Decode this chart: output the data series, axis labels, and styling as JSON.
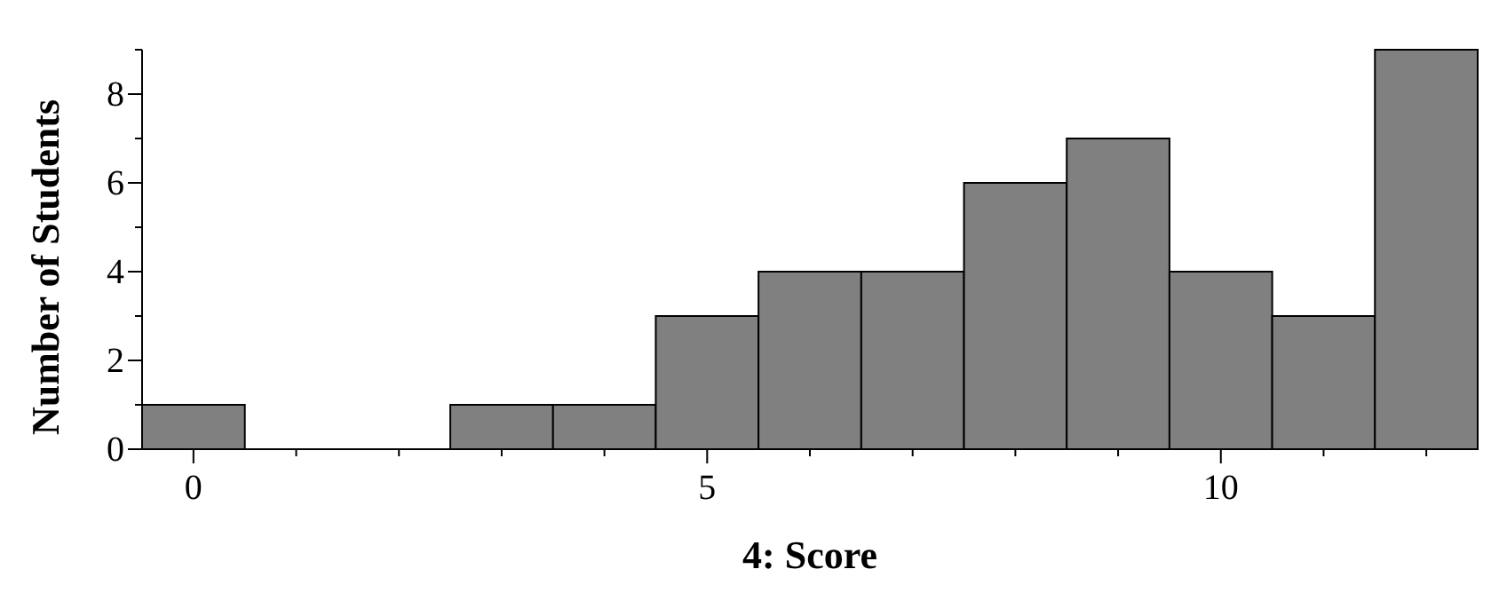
{
  "chart_data": {
    "type": "histogram",
    "xlabel": "4: Score",
    "ylabel": "Number of Students",
    "bins": [
      -0.5,
      0.5,
      1.5,
      2.5,
      3.5,
      4.5,
      5.5,
      6.5,
      7.5,
      8.5,
      9.5,
      10.5,
      11.5,
      12.5
    ],
    "values": [
      1,
      0,
      0,
      1,
      1,
      3,
      4,
      4,
      6,
      7,
      4,
      3,
      9
    ],
    "color": "#808080",
    "xlim": [
      -0.5,
      12.5
    ],
    "xticks": [
      0,
      {
        "value": 1,
        "label": null
      },
      {
        "value": 2,
        "label": null
      },
      {
        "value": 3,
        "label": null
      },
      {
        "value": 4,
        "label": null
      },
      5,
      {
        "value": 6,
        "label": null
      },
      {
        "value": 7,
        "label": null
      },
      {
        "value": 8,
        "label": null
      },
      {
        "value": 9,
        "label": null
      },
      10,
      {
        "value": 11,
        "label": null
      },
      {
        "value": 12,
        "label": null
      }
    ],
    "ylim": [
      0,
      9
    ],
    "yticks": [
      0,
      {
        "value": 1,
        "label": null
      },
      2,
      {
        "value": 3,
        "label": null
      },
      4,
      {
        "value": 5,
        "label": null
      },
      6,
      {
        "value": 7,
        "label": null
      },
      8,
      {
        "value": 9,
        "label": null
      }
    ],
    "grid": false
  }
}
